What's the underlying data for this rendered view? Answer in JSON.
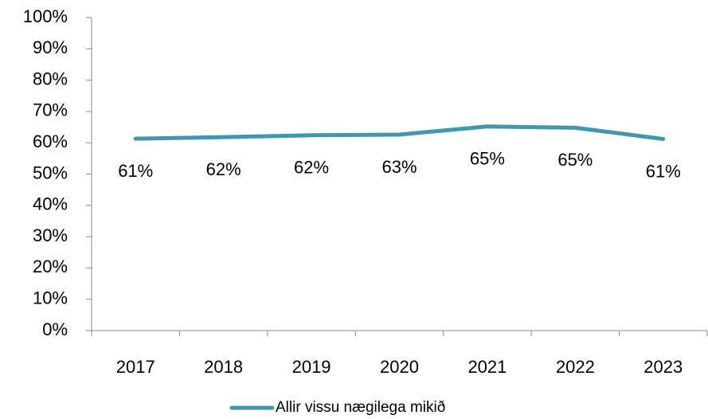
{
  "chart_data": {
    "type": "line",
    "categories": [
      "2017",
      "2018",
      "2019",
      "2020",
      "2021",
      "2022",
      "2023"
    ],
    "series": [
      {
        "name": "Allir vissu nægilega mikið",
        "color": "#4197ad",
        "values": [
          61.3,
          61.8,
          62.4,
          62.6,
          65.2,
          64.8,
          61.2
        ],
        "value_labels": [
          "61%",
          "62%",
          "62%",
          "63%",
          "65%",
          "65%",
          "61%"
        ]
      }
    ],
    "ylim": [
      0,
      100
    ],
    "yticks": [
      {
        "value": 0,
        "label": "0%"
      },
      {
        "value": 10,
        "label": "10%"
      },
      {
        "value": 20,
        "label": "20%"
      },
      {
        "value": 30,
        "label": "30%"
      },
      {
        "value": 40,
        "label": "40%"
      },
      {
        "value": 50,
        "label": "50%"
      },
      {
        "value": 60,
        "label": "60%"
      },
      {
        "value": 70,
        "label": "70%"
      },
      {
        "value": 80,
        "label": "80%"
      },
      {
        "value": 90,
        "label": "90%"
      },
      {
        "value": 100,
        "label": "100%"
      }
    ],
    "legend": "bottom"
  }
}
